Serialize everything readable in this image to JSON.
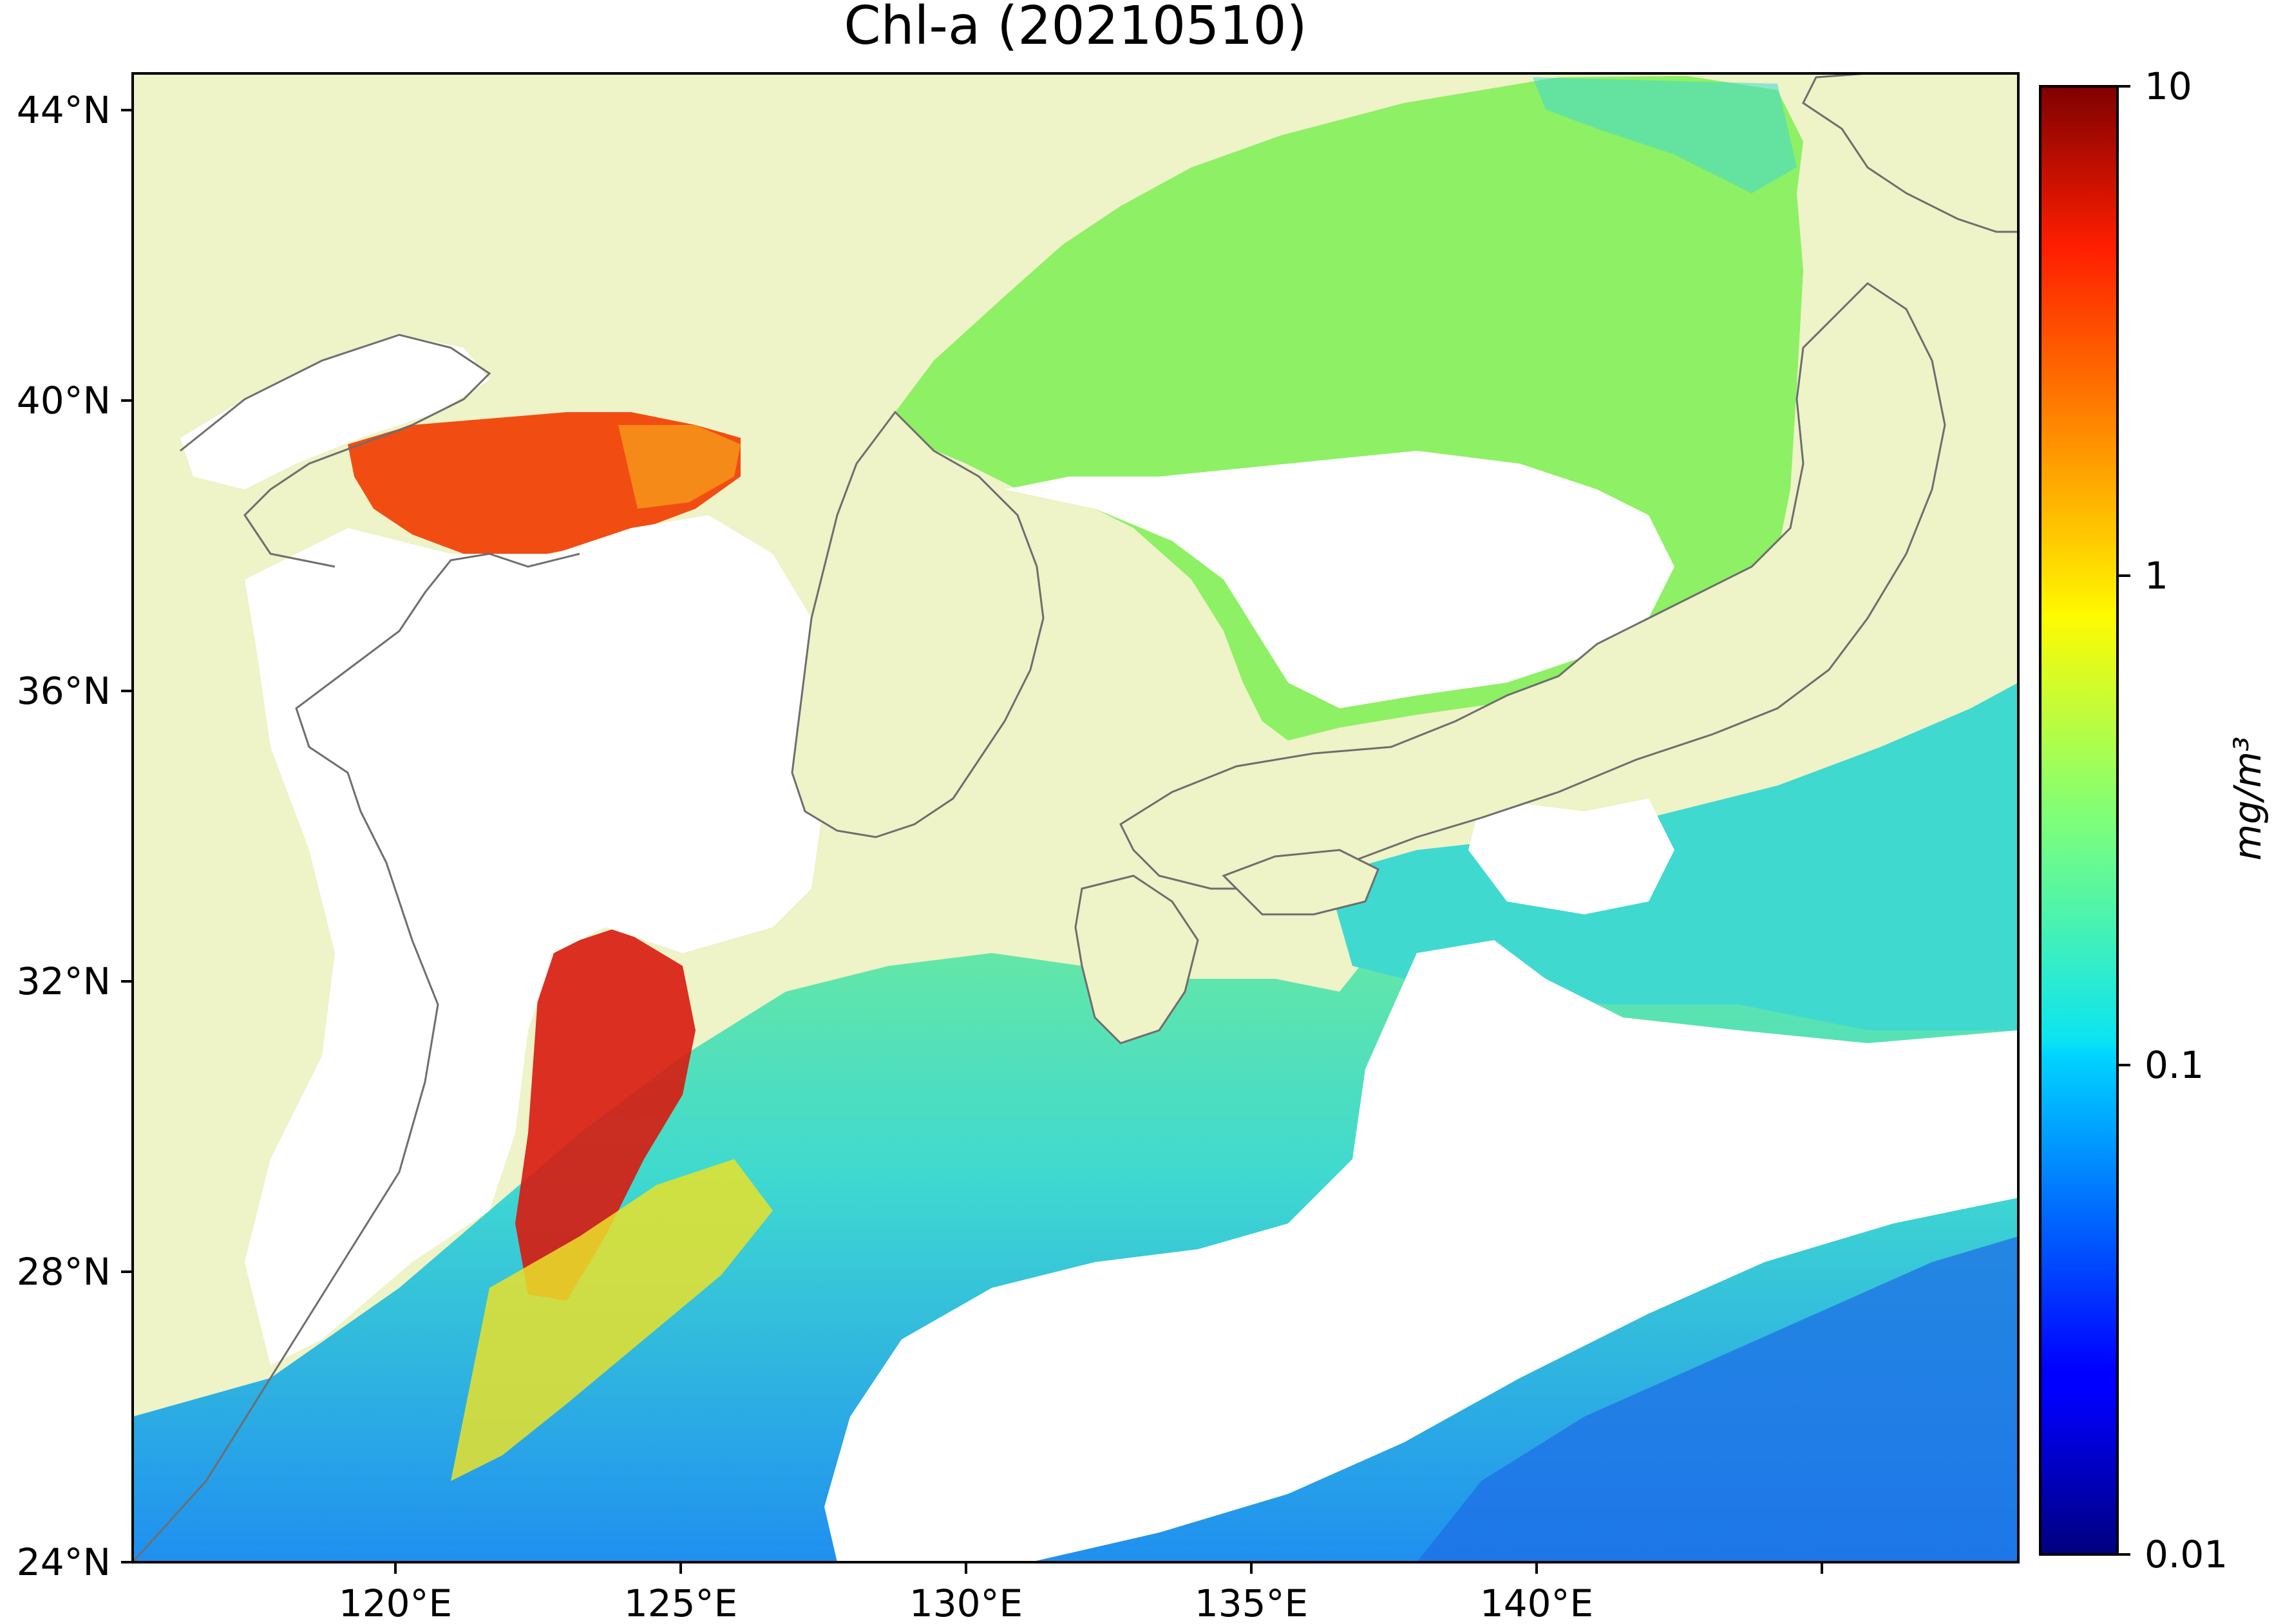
{
  "title": "Chl-a (20210510)",
  "map": {
    "extent": {
      "lon_min": 117,
      "lon_max": 143,
      "lat_min": 24,
      "lat_max": 44.5
    },
    "lon_ticks": [
      {
        "value": 120,
        "label": "120°E"
      },
      {
        "value": 125,
        "label": "125°E"
      },
      {
        "value": 130,
        "label": "130°E"
      },
      {
        "value": 135,
        "label": "135°E"
      },
      {
        "value": 140,
        "label": "140°E"
      }
    ],
    "lat_ticks": [
      {
        "value": 24,
        "label": "24°N"
      },
      {
        "value": 28,
        "label": "28°N"
      },
      {
        "value": 32,
        "label": "32°N"
      },
      {
        "value": 36,
        "label": "36°N"
      },
      {
        "value": 40,
        "label": "40°N"
      },
      {
        "value": 44,
        "label": "44°N"
      }
    ],
    "colors": {
      "land": "#eef3c8",
      "no_data": "#ffffff",
      "coastline": "#6e6e6e"
    }
  },
  "colorbar": {
    "colormap": "jet",
    "scale": "log",
    "range": [
      0.01,
      10
    ],
    "unit_label": "mg/m³",
    "ticks": [
      {
        "value": 10,
        "label": "10"
      },
      {
        "value": 1,
        "label": "1"
      },
      {
        "value": 0.1,
        "label": "0.1"
      },
      {
        "value": 0.01,
        "label": "0.01"
      }
    ]
  }
}
